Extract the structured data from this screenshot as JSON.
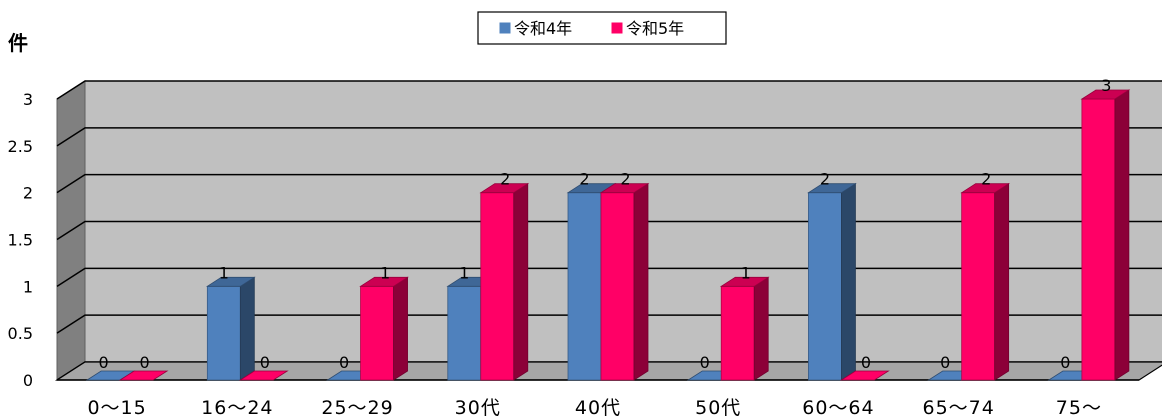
{
  "chart_data": {
    "type": "bar",
    "title": "",
    "ylabel": "件",
    "xlabel": "",
    "categories": [
      "0～15",
      "16～24",
      "25～29",
      "30代",
      "40代",
      "50代",
      "60～64",
      "65～74",
      "75～"
    ],
    "series": [
      {
        "name": "令和4年",
        "values": [
          0,
          1,
          0,
          1,
          2,
          0,
          2,
          0,
          0
        ],
        "color": "#4f81bd"
      },
      {
        "name": "令和5年",
        "values": [
          0,
          0,
          1,
          2,
          2,
          1,
          0,
          2,
          3
        ],
        "color": "#ff0066"
      }
    ],
    "ylim": [
      0,
      3
    ],
    "yticks": [
      "0",
      "0.5",
      "1",
      "1.5",
      "2",
      "2.5",
      "3"
    ],
    "grid": true,
    "legend": "top-center",
    "style": "3d-clustered-column"
  }
}
